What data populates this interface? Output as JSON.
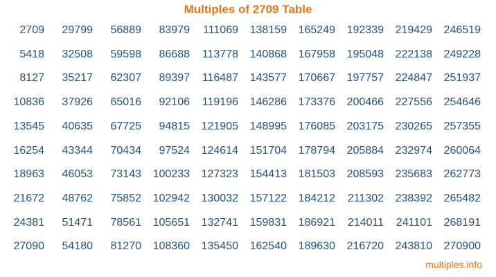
{
  "title": "Multiples of 2709 Table",
  "footer": "multiples.info",
  "colors": {
    "title": "#e8751a",
    "numbers": "#24527f",
    "footer": "#e8751a"
  },
  "table": {
    "rows": [
      [
        "2709",
        "29799",
        "56889",
        "83979",
        "111069",
        "138159",
        "165249",
        "192339",
        "219429",
        "246519"
      ],
      [
        "5418",
        "32508",
        "59598",
        "86688",
        "113778",
        "140868",
        "167958",
        "195048",
        "222138",
        "249228"
      ],
      [
        "8127",
        "35217",
        "62307",
        "89397",
        "116487",
        "143577",
        "170667",
        "197757",
        "224847",
        "251937"
      ],
      [
        "10836",
        "37926",
        "65016",
        "92106",
        "119196",
        "146286",
        "173376",
        "200466",
        "227556",
        "254646"
      ],
      [
        "13545",
        "40635",
        "67725",
        "94815",
        "121905",
        "148995",
        "176085",
        "203175",
        "230265",
        "257355"
      ],
      [
        "16254",
        "43344",
        "70434",
        "97524",
        "124614",
        "151704",
        "178794",
        "205884",
        "232974",
        "260064"
      ],
      [
        "18963",
        "46053",
        "73143",
        "100233",
        "127323",
        "154413",
        "181503",
        "208593",
        "235683",
        "262773"
      ],
      [
        "21672",
        "48762",
        "75852",
        "102942",
        "130032",
        "157122",
        "184212",
        "211302",
        "238392",
        "265482"
      ],
      [
        "24381",
        "51471",
        "78561",
        "105651",
        "132741",
        "159831",
        "186921",
        "214011",
        "241101",
        "268191"
      ],
      [
        "27090",
        "54180",
        "81270",
        "108360",
        "135450",
        "162540",
        "189630",
        "216720",
        "243810",
        "270900"
      ]
    ]
  }
}
